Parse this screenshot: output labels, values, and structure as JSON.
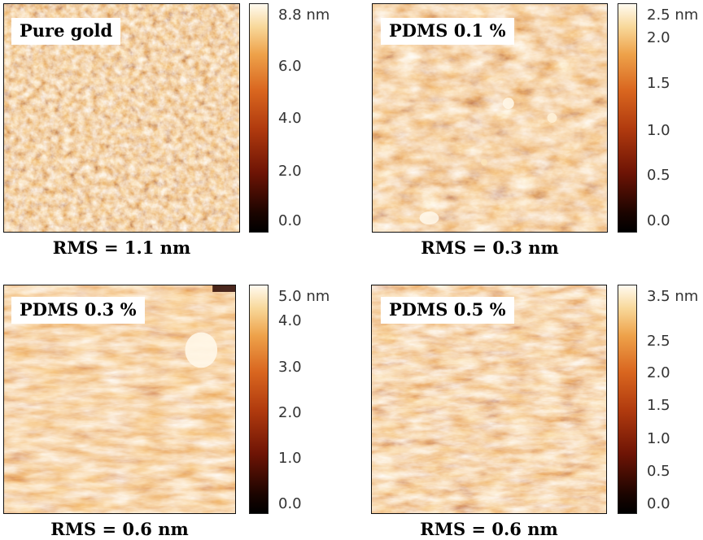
{
  "panels": [
    {
      "label": "Pure gold",
      "rms": "RMS = 1.1 nm",
      "ticks": [
        "8.8 nm",
        "6.0",
        "4.0",
        "2.0",
        "0.0"
      ]
    },
    {
      "label": "PDMS 0.1 %",
      "rms": "RMS = 0.3 nm",
      "ticks": [
        "2.5 nm",
        "2.0",
        "1.5",
        "1.0",
        "0.5",
        "0.0"
      ]
    },
    {
      "label": "PDMS 0.3 %",
      "rms": "RMS = 0.6 nm",
      "ticks": [
        "5.0 nm",
        "4.0",
        "3.0",
        "2.0",
        "1.0",
        "0.0"
      ]
    },
    {
      "label": "PDMS 0.5 %",
      "rms": "RMS = 0.6 nm",
      "ticks": [
        "3.5 nm",
        "2.5",
        "2.0",
        "1.5",
        "1.0",
        "0.5",
        "0.0"
      ]
    }
  ],
  "colors": {
    "dark": "#2a0600",
    "mid": "#c4501a",
    "light": "#f7c98a"
  }
}
